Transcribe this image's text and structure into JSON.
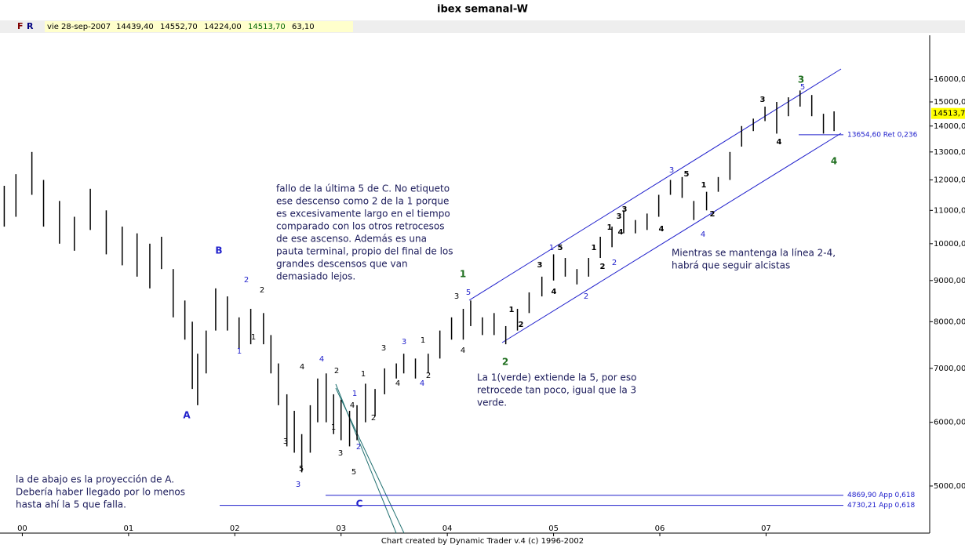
{
  "chart_data": {
    "type": "hilo",
    "title": "ibex semanal-W",
    "header": {
      "buttons": [
        "F",
        "R"
      ],
      "date": "vie 28-sep-2007",
      "fields": [
        "14439,40",
        "14552,70",
        "14224,00",
        "14513,70",
        "63,10"
      ]
    },
    "x": [
      1999.83,
      1999.94,
      2000.09,
      2000.2,
      2000.35,
      2000.49,
      2000.64,
      2000.79,
      2000.94,
      2001.08,
      2001.2,
      2001.31,
      2001.42,
      2001.53,
      2001.6,
      2001.65,
      2001.73,
      2001.82,
      2001.93,
      2002.04,
      2002.15,
      2002.27,
      2002.34,
      2002.41,
      2002.49,
      2002.56,
      2002.63,
      2002.71,
      2002.78,
      2002.86,
      2002.93,
      2003.0,
      2003.08,
      2003.15,
      2003.23,
      2003.32,
      2003.41,
      2003.52,
      2003.59,
      2003.7,
      2003.82,
      2003.93,
      2004.04,
      2004.15,
      2004.22,
      2004.33,
      2004.44,
      2004.55,
      2004.66,
      2004.77,
      2004.89,
      2005.0,
      2005.11,
      2005.22,
      2005.33,
      2005.44,
      2005.55,
      2005.66,
      2005.77,
      2005.88,
      2005.99,
      2006.1,
      2006.21,
      2006.32,
      2006.44,
      2006.55,
      2006.66,
      2006.77,
      2006.88,
      2006.99,
      2007.1,
      2007.21,
      2007.32,
      2007.43,
      2007.54,
      2007.64
    ],
    "high": [
      11800,
      12200,
      13000,
      12000,
      11300,
      10800,
      11700,
      11000,
      10500,
      10300,
      10000,
      10200,
      9300,
      8500,
      8000,
      7300,
      7800,
      8800,
      8600,
      8100,
      8300,
      8200,
      7700,
      7100,
      6500,
      6200,
      5800,
      6300,
      6800,
      6900,
      6500,
      6400,
      6200,
      6300,
      6700,
      6600,
      7000,
      7100,
      7300,
      7200,
      7300,
      7800,
      8100,
      8300,
      8500,
      8100,
      8200,
      7900,
      8300,
      8700,
      9100,
      9700,
      9600,
      9300,
      9600,
      10200,
      10500,
      11000,
      10700,
      10900,
      11500,
      12000,
      12100,
      11300,
      11600,
      12100,
      13000,
      14000,
      14300,
      14800,
      15000,
      15200,
      15500,
      15300,
      14500,
      14600
    ],
    "low": [
      10500,
      10800,
      11500,
      10500,
      10000,
      9800,
      10400,
      9700,
      9400,
      9100,
      8800,
      9300,
      8100,
      7600,
      6600,
      6300,
      6900,
      7800,
      7800,
      7400,
      7500,
      7500,
      6900,
      6300,
      5600,
      5500,
      5200,
      5500,
      6000,
      6000,
      5800,
      5700,
      5600,
      5700,
      6000,
      6100,
      6500,
      6800,
      6900,
      6800,
      6900,
      7200,
      7600,
      7600,
      7900,
      7700,
      7700,
      7500,
      7800,
      8200,
      8600,
      9000,
      9100,
      8900,
      9100,
      9600,
      9900,
      10300,
      10300,
      10400,
      10800,
      11500,
      11400,
      10700,
      11000,
      11600,
      12000,
      13200,
      13800,
      14200,
      13700,
      14400,
      14800,
      14400,
      13700,
      13800
    ],
    "color": "#000000",
    "ylog": true,
    "grid": false,
    "xlim": [
      1999.79,
      2008.54
    ],
    "xticks": [
      {
        "value": 2000,
        "label": "00"
      },
      {
        "value": 2001,
        "label": "01"
      },
      {
        "value": 2002,
        "label": "02"
      },
      {
        "value": 2003,
        "label": "03"
      },
      {
        "value": 2004,
        "label": "04"
      },
      {
        "value": 2005,
        "label": "05"
      },
      {
        "value": 2006,
        "label": "06"
      },
      {
        "value": 2007,
        "label": "07"
      }
    ],
    "ylim": [
      4370,
      18150
    ],
    "yticks": [
      {
        "value": 5000,
        "label": "5000,00"
      },
      {
        "value": 6000,
        "label": "6000,00"
      },
      {
        "value": 7000,
        "label": "7000,00"
      },
      {
        "value": 8000,
        "label": "8000,00"
      },
      {
        "value": 9000,
        "label": "9000,00"
      },
      {
        "value": 10000,
        "label": "10000,00"
      },
      {
        "value": 11000,
        "label": "11000,00"
      },
      {
        "value": 12000,
        "label": "12000,00"
      },
      {
        "value": 13000,
        "label": "13000,00"
      },
      {
        "value": 14000,
        "label": "14000,00"
      },
      {
        "value": 15000,
        "label": "15000,00"
      },
      {
        "value": 16000,
        "label": "16000,00"
      }
    ],
    "last_price": {
      "value": 14513.7,
      "label": "14513,7"
    },
    "levels": [
      {
        "value": 13654.6,
        "label": "13654,60 Ret 0,236"
      },
      {
        "value": 4869.9,
        "label": "4869,90 App 0,618"
      },
      {
        "value": 4730.21,
        "label": "4730,21 App 0,618"
      }
    ],
    "wave_labels": {
      "blue": [
        "B",
        "A",
        "C",
        "2",
        "1",
        "4",
        "3",
        "1",
        "2",
        "3",
        "4",
        "5",
        "1",
        "3",
        "2",
        "2",
        "4",
        "5"
      ],
      "black": [
        "2",
        "1",
        "4",
        "3",
        "5",
        "2",
        "1",
        "3",
        "5",
        "4",
        "1",
        "2",
        "3",
        "4",
        "2",
        "1",
        "3",
        "4",
        "1",
        "2",
        "3",
        "5",
        "4",
        "1",
        "2",
        "4",
        "1",
        "3",
        "4",
        "5",
        "1",
        "2",
        "3",
        "4",
        "3"
      ],
      "green": [
        "1",
        "2",
        "3",
        "4"
      ]
    },
    "notes": [
      [
        "fallo de la última 5 de C. No etiqueto",
        "ese descenso como 2 de la 1 porque",
        "es excesivamente largo en el tiempo",
        "comparado con los otros retrocesos",
        "de ese ascenso. Además es una",
        "pauta terminal, propio del final de los",
        "grandes descensos que van",
        "demasiado lejos."
      ],
      [
        "La 1(verde) extiende la 5, por eso",
        "retrocede tan poco, igual que la 3",
        "verde."
      ],
      [
        "Mientras se mantenga la línea 2-4,",
        "habrá que seguir alcistas"
      ],
      [
        "la de abajo es la proyección de A.",
        "Debería haber llegado por lo menos",
        "hasta ahí la 5 que falla."
      ]
    ],
    "footer": "Chart created by Dynamic Trader v.4  (c)  1996-2002"
  }
}
